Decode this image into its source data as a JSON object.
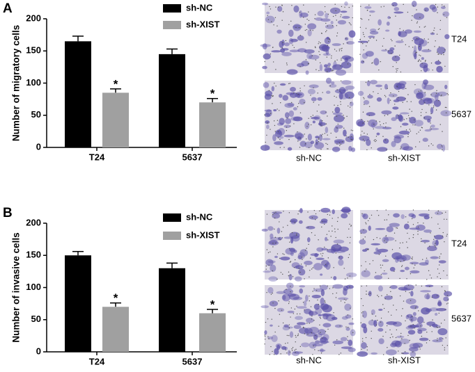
{
  "chart_data": [
    {
      "type": "bar",
      "panel_label": "A",
      "y_label": "Number of migratory cells",
      "categories": [
        "T24",
        "5637"
      ],
      "series": [
        {
          "name": "sh-NC",
          "color": "#000000",
          "values": [
            165,
            145
          ],
          "errors": [
            8,
            8
          ]
        },
        {
          "name": "sh-XIST",
          "color": "#a0a0a0",
          "values": [
            85,
            70
          ],
          "errors": [
            6,
            6
          ],
          "significance": [
            "*",
            "*"
          ]
        }
      ],
      "ylim": [
        0,
        200
      ],
      "yticks": [
        0,
        50,
        100,
        150,
        200
      ],
      "image_row_labels": [
        "T24",
        "5637"
      ],
      "image_column_labels": [
        "sh-NC",
        "sh-XIST"
      ]
    },
    {
      "type": "bar",
      "panel_label": "B",
      "y_label": "Number of invasive cells",
      "categories": [
        "T24",
        "5637"
      ],
      "series": [
        {
          "name": "sh-NC",
          "color": "#000000",
          "values": [
            150,
            130
          ],
          "errors": [
            6,
            8
          ]
        },
        {
          "name": "sh-XIST",
          "color": "#a0a0a0",
          "values": [
            70,
            60
          ],
          "errors": [
            6,
            6
          ],
          "significance": [
            "*",
            "*"
          ]
        }
      ],
      "ylim": [
        0,
        200
      ],
      "yticks": [
        0,
        50,
        100,
        150,
        200
      ],
      "image_row_labels": [
        "T24",
        "5637"
      ],
      "image_column_labels": [
        "sh-NC",
        "sh-XIST"
      ]
    }
  ]
}
